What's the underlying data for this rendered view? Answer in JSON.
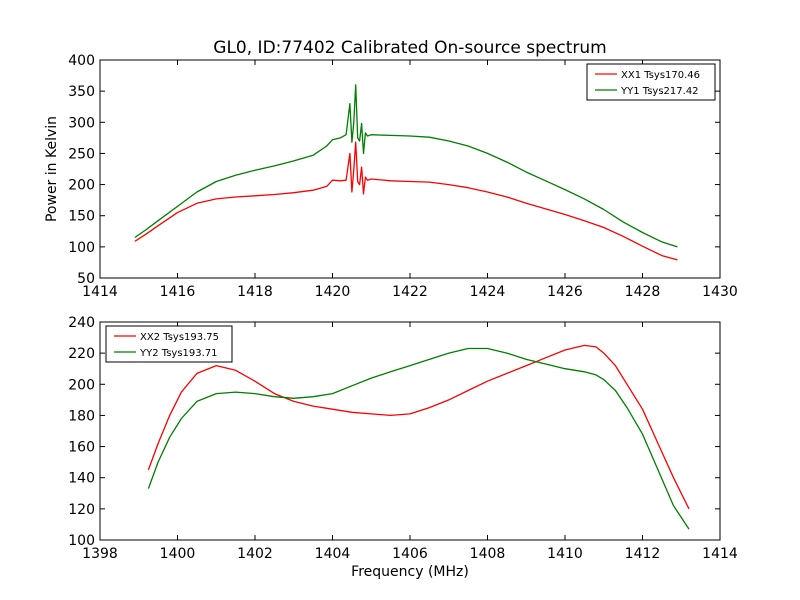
{
  "figure": {
    "title": "GL0, ID:77402 Calibrated On-source spectrum"
  },
  "chart_data": [
    {
      "type": "line",
      "title": "GL0, ID:77402 Calibrated On-source spectrum",
      "xlabel": "",
      "ylabel": "Power in Kelvin",
      "xlim": [
        1414,
        1430
      ],
      "ylim": [
        50,
        400
      ],
      "xticks": [
        1414,
        1416,
        1418,
        1420,
        1422,
        1424,
        1426,
        1428,
        1430
      ],
      "yticks": [
        50,
        100,
        150,
        200,
        250,
        300,
        350,
        400
      ],
      "grid": false,
      "legend_position": "top-right",
      "series": [
        {
          "name": "XX1 Tsys170.46",
          "color": "#ff0000",
          "x": [
            1414.9,
            1415.2,
            1415.5,
            1416.0,
            1416.5,
            1417.0,
            1417.5,
            1418.0,
            1418.5,
            1419.0,
            1419.5,
            1419.85,
            1420.0,
            1420.2,
            1420.35,
            1420.45,
            1420.5,
            1420.55,
            1420.6,
            1420.65,
            1420.7,
            1420.75,
            1420.8,
            1420.85,
            1420.9,
            1421.0,
            1421.5,
            1422.0,
            1422.5,
            1423.0,
            1423.5,
            1424.0,
            1424.5,
            1425.0,
            1425.5,
            1426.0,
            1426.5,
            1427.0,
            1427.5,
            1428.0,
            1428.5,
            1428.9
          ],
          "values": [
            109,
            121,
            134,
            155,
            170,
            177,
            180,
            182,
            184,
            187,
            191,
            197,
            207,
            206,
            207,
            250,
            188,
            224,
            268,
            205,
            200,
            228,
            185,
            212,
            207,
            209,
            206,
            205,
            204,
            200,
            195,
            188,
            180,
            170,
            161,
            152,
            142,
            131,
            117,
            101,
            86,
            79
          ]
        },
        {
          "name": "YY1 Tsys217.42",
          "color": "#007f00",
          "x": [
            1414.9,
            1415.2,
            1415.5,
            1416.0,
            1416.5,
            1417.0,
            1417.5,
            1418.0,
            1418.5,
            1419.0,
            1419.5,
            1419.85,
            1420.0,
            1420.2,
            1420.35,
            1420.45,
            1420.5,
            1420.55,
            1420.6,
            1420.65,
            1420.7,
            1420.75,
            1420.8,
            1420.85,
            1420.9,
            1421.0,
            1421.5,
            1422.0,
            1422.5,
            1423.0,
            1423.5,
            1424.0,
            1424.5,
            1425.0,
            1425.5,
            1426.0,
            1426.5,
            1427.0,
            1427.5,
            1428.0,
            1428.5,
            1428.9
          ],
          "values": [
            115,
            128,
            142,
            165,
            188,
            205,
            215,
            223,
            230,
            238,
            247,
            262,
            272,
            275,
            280,
            330,
            268,
            300,
            360,
            275,
            270,
            298,
            250,
            283,
            278,
            280,
            279,
            278,
            276,
            270,
            262,
            250,
            236,
            220,
            206,
            192,
            177,
            160,
            140,
            123,
            108,
            100
          ]
        }
      ]
    },
    {
      "type": "line",
      "title": "",
      "xlabel": "Frequency (MHz)",
      "ylabel": "",
      "xlim": [
        1398,
        1414
      ],
      "ylim": [
        100,
        240
      ],
      "xticks": [
        1398,
        1400,
        1402,
        1404,
        1406,
        1408,
        1410,
        1412,
        1414
      ],
      "yticks": [
        100,
        120,
        140,
        160,
        180,
        200,
        220,
        240
      ],
      "grid": false,
      "legend_position": "top-left",
      "series": [
        {
          "name": "XX2 Tsys193.75",
          "color": "#ff0000",
          "x": [
            1399.25,
            1399.5,
            1399.8,
            1400.1,
            1400.5,
            1401.0,
            1401.5,
            1402.0,
            1402.5,
            1403.0,
            1403.5,
            1404.0,
            1404.5,
            1405.0,
            1405.5,
            1406.0,
            1406.5,
            1407.0,
            1407.5,
            1408.0,
            1408.5,
            1409.0,
            1409.5,
            1410.0,
            1410.5,
            1410.8,
            1411.0,
            1411.3,
            1411.6,
            1412.0,
            1412.4,
            1412.8,
            1413.2
          ],
          "values": [
            145,
            162,
            180,
            195,
            207,
            212,
            209,
            202,
            194,
            189,
            186,
            184,
            182,
            181,
            180,
            181,
            185,
            190,
            196,
            202,
            207,
            212,
            217,
            222,
            225,
            224,
            220,
            212,
            200,
            184,
            162,
            140,
            120
          ]
        },
        {
          "name": "YY2 Tsys193.71",
          "color": "#007f00",
          "x": [
            1399.25,
            1399.5,
            1399.8,
            1400.1,
            1400.5,
            1401.0,
            1401.5,
            1402.0,
            1402.5,
            1403.0,
            1403.5,
            1404.0,
            1404.5,
            1405.0,
            1405.5,
            1406.0,
            1406.5,
            1407.0,
            1407.5,
            1408.0,
            1408.5,
            1409.0,
            1409.5,
            1410.0,
            1410.5,
            1410.8,
            1411.0,
            1411.3,
            1411.6,
            1412.0,
            1412.4,
            1412.8,
            1413.2
          ],
          "values": [
            133,
            150,
            166,
            178,
            189,
            194,
            195,
            194,
            192,
            191,
            192,
            194,
            199,
            204,
            208,
            212,
            216,
            220,
            223,
            223,
            220,
            216,
            213,
            210,
            208,
            206,
            203,
            196,
            185,
            168,
            145,
            122,
            107
          ]
        }
      ]
    }
  ]
}
